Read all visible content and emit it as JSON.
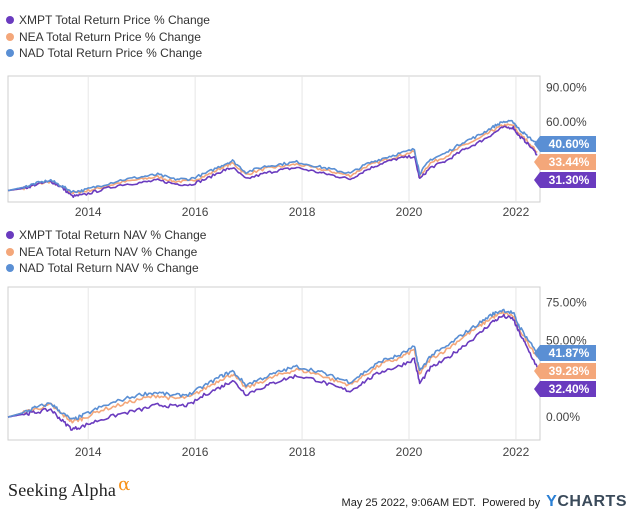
{
  "chart_data": [
    {
      "type": "line",
      "title": "",
      "xlabel": "",
      "ylabel": "",
      "x_tick_labels": [
        "2014",
        "2016",
        "2018",
        "2020",
        "2022"
      ],
      "y_tick_labels": [
        "90.00%",
        "60.00%"
      ],
      "ylim": [
        -10,
        100
      ],
      "grid": false,
      "legend_position": "top-left",
      "series": [
        {
          "name": "XMPT Total Return Price % Change",
          "color": "#6a3bbf",
          "end_label": "31.30%",
          "points": [
            [
              2012.5,
              0
            ],
            [
              2012.8,
              2
            ],
            [
              2013.0,
              5
            ],
            [
              2013.3,
              8
            ],
            [
              2013.5,
              3
            ],
            [
              2013.7,
              -5
            ],
            [
              2013.9,
              -4
            ],
            [
              2014.2,
              0
            ],
            [
              2014.6,
              5
            ],
            [
              2015.0,
              7
            ],
            [
              2015.3,
              9
            ],
            [
              2015.6,
              6
            ],
            [
              2015.9,
              5
            ],
            [
              2016.2,
              10
            ],
            [
              2016.5,
              17
            ],
            [
              2016.7,
              20
            ],
            [
              2016.95,
              10
            ],
            [
              2017.3,
              15
            ],
            [
              2017.6,
              18
            ],
            [
              2017.9,
              20
            ],
            [
              2018.3,
              16
            ],
            [
              2018.6,
              13
            ],
            [
              2018.9,
              10
            ],
            [
              2019.2,
              18
            ],
            [
              2019.5,
              24
            ],
            [
              2019.8,
              28
            ],
            [
              2020.1,
              30
            ],
            [
              2020.2,
              10
            ],
            [
              2020.4,
              20
            ],
            [
              2020.7,
              26
            ],
            [
              2021.0,
              35
            ],
            [
              2021.3,
              42
            ],
            [
              2021.55,
              49
            ],
            [
              2021.75,
              55
            ],
            [
              2021.95,
              55
            ],
            [
              2022.05,
              48
            ],
            [
              2022.2,
              42
            ],
            [
              2022.4,
              31.3
            ]
          ]
        },
        {
          "name": "NEA Total Return Price % Change",
          "color": "#f4a77a",
          "end_label": "33.44%",
          "points": [
            [
              2012.5,
              0
            ],
            [
              2012.8,
              2
            ],
            [
              2013.0,
              5
            ],
            [
              2013.3,
              8
            ],
            [
              2013.5,
              3
            ],
            [
              2013.7,
              -2
            ],
            [
              2013.9,
              -1
            ],
            [
              2014.2,
              2
            ],
            [
              2014.6,
              7
            ],
            [
              2015.0,
              10
            ],
            [
              2015.3,
              12
            ],
            [
              2015.6,
              8
            ],
            [
              2015.9,
              8
            ],
            [
              2016.2,
              13
            ],
            [
              2016.5,
              20
            ],
            [
              2016.7,
              24
            ],
            [
              2016.95,
              14
            ],
            [
              2017.3,
              19
            ],
            [
              2017.6,
              21
            ],
            [
              2017.9,
              23
            ],
            [
              2018.3,
              19
            ],
            [
              2018.6,
              16
            ],
            [
              2018.9,
              13
            ],
            [
              2019.2,
              21
            ],
            [
              2019.5,
              26
            ],
            [
              2019.8,
              30
            ],
            [
              2020.1,
              34
            ],
            [
              2020.2,
              13
            ],
            [
              2020.4,
              24
            ],
            [
              2020.7,
              30
            ],
            [
              2021.0,
              39
            ],
            [
              2021.3,
              45
            ],
            [
              2021.55,
              52
            ],
            [
              2021.75,
              57
            ],
            [
              2021.95,
              57
            ],
            [
              2022.05,
              50
            ],
            [
              2022.2,
              44
            ],
            [
              2022.4,
              33.44
            ]
          ]
        },
        {
          "name": "NAD Total Return Price % Change",
          "color": "#5a8fd4",
          "end_label": "40.60%",
          "points": [
            [
              2012.5,
              0
            ],
            [
              2012.8,
              3
            ],
            [
              2013.0,
              6
            ],
            [
              2013.3,
              9
            ],
            [
              2013.5,
              4
            ],
            [
              2013.7,
              -1
            ],
            [
              2013.9,
              0
            ],
            [
              2014.2,
              4
            ],
            [
              2014.6,
              9
            ],
            [
              2015.0,
              12
            ],
            [
              2015.3,
              14
            ],
            [
              2015.6,
              10
            ],
            [
              2015.9,
              10
            ],
            [
              2016.2,
              15
            ],
            [
              2016.5,
              22
            ],
            [
              2016.7,
              26
            ],
            [
              2016.95,
              16
            ],
            [
              2017.3,
              21
            ],
            [
              2017.6,
              23
            ],
            [
              2017.9,
              25
            ],
            [
              2018.3,
              21
            ],
            [
              2018.6,
              18
            ],
            [
              2018.9,
              15
            ],
            [
              2019.2,
              23
            ],
            [
              2019.5,
              28
            ],
            [
              2019.8,
              32
            ],
            [
              2020.1,
              36
            ],
            [
              2020.2,
              15
            ],
            [
              2020.4,
              27
            ],
            [
              2020.7,
              33
            ],
            [
              2021.0,
              42
            ],
            [
              2021.3,
              48
            ],
            [
              2021.55,
              55
            ],
            [
              2021.75,
              60
            ],
            [
              2021.95,
              60
            ],
            [
              2022.05,
              54
            ],
            [
              2022.2,
              48
            ],
            [
              2022.4,
              40.6
            ]
          ]
        }
      ]
    },
    {
      "type": "line",
      "title": "",
      "xlabel": "",
      "ylabel": "",
      "x_tick_labels": [
        "2014",
        "2016",
        "2018",
        "2020",
        "2022"
      ],
      "y_tick_labels": [
        "75.00%",
        "50.00%",
        "0.00%"
      ],
      "ylim": [
        -15,
        85
      ],
      "grid": false,
      "legend_position": "top-left",
      "series": [
        {
          "name": "XMPT Total Return NAV % Change",
          "color": "#6a3bbf",
          "end_label": "32.40%",
          "points": [
            [
              2012.5,
              0
            ],
            [
              2012.8,
              2
            ],
            [
              2013.0,
              3
            ],
            [
              2013.3,
              5
            ],
            [
              2013.5,
              -2
            ],
            [
              2013.7,
              -8
            ],
            [
              2013.9,
              -6
            ],
            [
              2014.2,
              -2
            ],
            [
              2014.6,
              2
            ],
            [
              2015.0,
              5
            ],
            [
              2015.3,
              8
            ],
            [
              2015.6,
              7
            ],
            [
              2015.9,
              8
            ],
            [
              2016.2,
              15
            ],
            [
              2016.5,
              20
            ],
            [
              2016.7,
              24
            ],
            [
              2016.95,
              15
            ],
            [
              2017.3,
              20
            ],
            [
              2017.6,
              24
            ],
            [
              2017.9,
              27
            ],
            [
              2018.3,
              24
            ],
            [
              2018.6,
              20
            ],
            [
              2018.9,
              17
            ],
            [
              2019.2,
              24
            ],
            [
              2019.5,
              30
            ],
            [
              2019.8,
              33
            ],
            [
              2020.1,
              38
            ],
            [
              2020.2,
              22
            ],
            [
              2020.4,
              32
            ],
            [
              2020.7,
              38
            ],
            [
              2021.0,
              46
            ],
            [
              2021.3,
              54
            ],
            [
              2021.55,
              62
            ],
            [
              2021.75,
              66
            ],
            [
              2021.95,
              64
            ],
            [
              2022.05,
              56
            ],
            [
              2022.2,
              46
            ],
            [
              2022.4,
              32.4
            ]
          ]
        },
        {
          "name": "NEA Total Return NAV % Change",
          "color": "#f4a77a",
          "end_label": "39.28%",
          "points": [
            [
              2012.5,
              0
            ],
            [
              2012.8,
              3
            ],
            [
              2013.0,
              5
            ],
            [
              2013.3,
              8
            ],
            [
              2013.5,
              2
            ],
            [
              2013.7,
              -3
            ],
            [
              2013.9,
              -1
            ],
            [
              2014.2,
              4
            ],
            [
              2014.6,
              8
            ],
            [
              2015.0,
              12
            ],
            [
              2015.3,
              14
            ],
            [
              2015.6,
              12
            ],
            [
              2015.9,
              13
            ],
            [
              2016.2,
              19
            ],
            [
              2016.5,
              25
            ],
            [
              2016.7,
              28
            ],
            [
              2016.95,
              19
            ],
            [
              2017.3,
              24
            ],
            [
              2017.6,
              28
            ],
            [
              2017.9,
              31
            ],
            [
              2018.3,
              28
            ],
            [
              2018.6,
              24
            ],
            [
              2018.9,
              21
            ],
            [
              2019.2,
              28
            ],
            [
              2019.5,
              35
            ],
            [
              2019.8,
              38
            ],
            [
              2020.1,
              44
            ],
            [
              2020.2,
              28
            ],
            [
              2020.4,
              38
            ],
            [
              2020.7,
              44
            ],
            [
              2021.0,
              52
            ],
            [
              2021.3,
              59
            ],
            [
              2021.55,
              65
            ],
            [
              2021.75,
              68
            ],
            [
              2021.95,
              66
            ],
            [
              2022.05,
              58
            ],
            [
              2022.2,
              50
            ],
            [
              2022.4,
              39.28
            ]
          ]
        },
        {
          "name": "NAD Total Return NAV % Change",
          "color": "#5a8fd4",
          "end_label": "41.87%",
          "points": [
            [
              2012.5,
              0
            ],
            [
              2012.8,
              3
            ],
            [
              2013.0,
              6
            ],
            [
              2013.3,
              9
            ],
            [
              2013.5,
              3
            ],
            [
              2013.7,
              -2
            ],
            [
              2013.9,
              1
            ],
            [
              2014.2,
              6
            ],
            [
              2014.6,
              11
            ],
            [
              2015.0,
              15
            ],
            [
              2015.3,
              16
            ],
            [
              2015.6,
              14
            ],
            [
              2015.9,
              15
            ],
            [
              2016.2,
              21
            ],
            [
              2016.5,
              27
            ],
            [
              2016.7,
              30
            ],
            [
              2016.95,
              21
            ],
            [
              2017.3,
              26
            ],
            [
              2017.6,
              30
            ],
            [
              2017.9,
              33
            ],
            [
              2018.3,
              30
            ],
            [
              2018.6,
              26
            ],
            [
              2018.9,
              23
            ],
            [
              2019.2,
              30
            ],
            [
              2019.5,
              37
            ],
            [
              2019.8,
              40
            ],
            [
              2020.1,
              46
            ],
            [
              2020.2,
              30
            ],
            [
              2020.4,
              40
            ],
            [
              2020.7,
              46
            ],
            [
              2021.0,
              54
            ],
            [
              2021.3,
              61
            ],
            [
              2021.55,
              67
            ],
            [
              2021.75,
              70
            ],
            [
              2021.95,
              68
            ],
            [
              2022.05,
              60
            ],
            [
              2022.2,
              52
            ],
            [
              2022.4,
              41.87
            ]
          ]
        }
      ]
    }
  ],
  "footer": {
    "brand": "Seeking Alpha",
    "brand_mark": "α",
    "timestamp": "May 25 2022, 9:06AM EDT.",
    "powered_by": "Powered by",
    "ycharts_y": "Y",
    "ycharts_rest": "CHARTS"
  }
}
